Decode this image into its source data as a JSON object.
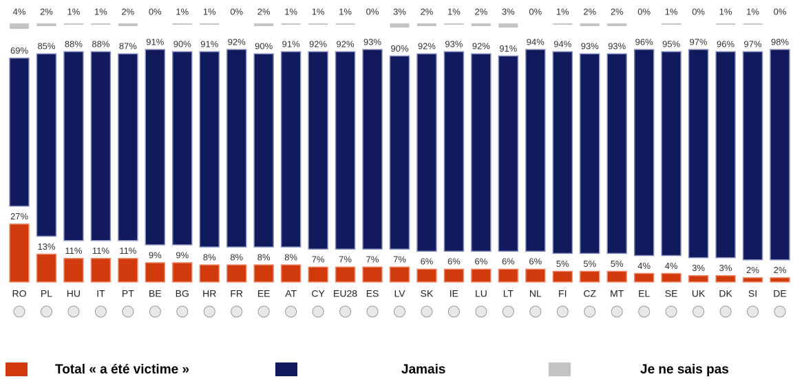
{
  "chart_data": {
    "type": "bar",
    "categories": [
      "RO",
      "PL",
      "HU",
      "IT",
      "PT",
      "BE",
      "BG",
      "HR",
      "FR",
      "EE",
      "AT",
      "CY",
      "EU28",
      "ES",
      "LV",
      "SK",
      "IE",
      "LU",
      "LT",
      "NL",
      "FI",
      "CZ",
      "MT",
      "EL",
      "SE",
      "UK",
      "DK",
      "SI",
      "DE"
    ],
    "series": [
      {
        "name": "Total « a été victime »",
        "color": "#d13a0c",
        "values": [
          27,
          13,
          11,
          11,
          11,
          9,
          9,
          8,
          8,
          8,
          8,
          7,
          7,
          7,
          7,
          6,
          6,
          6,
          6,
          6,
          5,
          5,
          5,
          4,
          4,
          3,
          3,
          2,
          2
        ],
        "value_labels": [
          "27%",
          "13%",
          "11%",
          "11%",
          "11%",
          "9%",
          "9%",
          "8%",
          "8%",
          "8%",
          "8%",
          "7%",
          "7%",
          "7%",
          "7%",
          "6%",
          "6%",
          "6%",
          "6%",
          "6%",
          "5%",
          "5%",
          "5%",
          "4%",
          "4%",
          "3%",
          "3%",
          "2%",
          "2%"
        ]
      },
      {
        "name": "Jamais",
        "color": "#111a5c",
        "values": [
          69,
          85,
          88,
          88,
          87,
          91,
          90,
          91,
          92,
          90,
          91,
          92,
          92,
          93,
          90,
          92,
          93,
          92,
          91,
          94,
          94,
          93,
          93,
          96,
          95,
          97,
          96,
          97,
          98
        ],
        "value_labels": [
          "69%",
          "85%",
          "88%",
          "88%",
          "87%",
          "91%",
          "90%",
          "91%",
          "92%",
          "90%",
          "91%",
          "92%",
          "92%",
          "93%",
          "90%",
          "92%",
          "93%",
          "92%",
          "91%",
          "94%",
          "94%",
          "93%",
          "93%",
          "96%",
          "95%",
          "97%",
          "96%",
          "97%",
          "98%"
        ]
      },
      {
        "name": "Je ne sais pas",
        "color": "#c4c4c4",
        "values": [
          4,
          2,
          1,
          1,
          2,
          0,
          1,
          1,
          0,
          2,
          1,
          1,
          1,
          0,
          3,
          2,
          1,
          2,
          3,
          0,
          1,
          2,
          2,
          0,
          1,
          0,
          1,
          1,
          0
        ],
        "value_labels": [
          "4%",
          "2%",
          "1%",
          "1%",
          "2%",
          "0%",
          "1%",
          "1%",
          "0%",
          "2%",
          "1%",
          "1%",
          "1%",
          "0%",
          "3%",
          "2%",
          "1%",
          "2%",
          "3%",
          "0%",
          "1%",
          "2%",
          "2%",
          "0%",
          "1%",
          "0%",
          "1%",
          "1%",
          "0%"
        ]
      }
    ]
  }
}
